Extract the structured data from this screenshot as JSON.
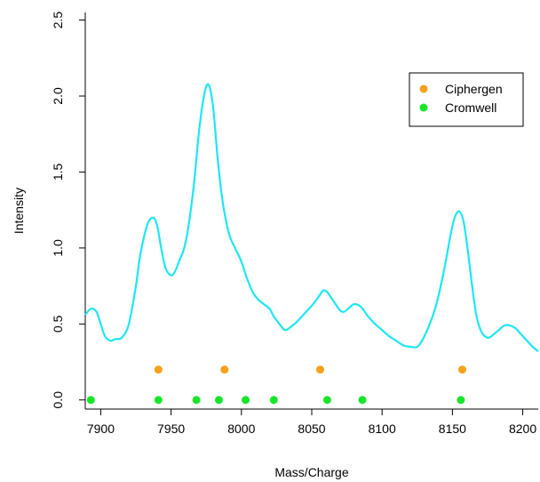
{
  "chart_data": {
    "type": "line",
    "xlabel": "Mass/Charge",
    "ylabel": "Intensity",
    "xlim": [
      7889,
      8211
    ],
    "ylim": [
      -0.06,
      2.55
    ],
    "x_ticks": [
      "7900",
      "7950",
      "8000",
      "8050",
      "8100",
      "8150",
      "8200"
    ],
    "y_ticks": [
      "0.0",
      "0.5",
      "1.0",
      "1.5",
      "2.0",
      "2.5"
    ],
    "grid": false,
    "legend_position": "top-right",
    "colors": {
      "spectrum": "#1ee6f2",
      "ciphergen": "#f7a01a",
      "cromwell": "#16e62a"
    },
    "spectrum": {
      "x": [
        7889,
        7893,
        7897,
        7900,
        7903,
        7907,
        7910,
        7915,
        7920,
        7925,
        7928,
        7933,
        7937,
        7940,
        7943,
        7946,
        7950,
        7953,
        7956,
        7959,
        7962,
        7966,
        7970,
        7974,
        7977,
        7980,
        7983,
        7986,
        7989,
        7992,
        7996,
        8000,
        8004,
        8008,
        8012,
        8016,
        8020,
        8023,
        8027,
        8031,
        8035,
        8040,
        8045,
        8050,
        8055,
        8058,
        8061,
        8064,
        8067,
        8070,
        8073,
        8077,
        8080,
        8084,
        8087,
        8090,
        8095,
        8100,
        8105,
        8110,
        8115,
        8120,
        8125,
        8129,
        8133,
        8137,
        8141,
        8145,
        8149,
        8152,
        8155,
        8158,
        8161,
        8164,
        8167,
        8170,
        8173,
        8176,
        8179,
        8183,
        8187,
        8191,
        8195,
        8199,
        8203,
        8207,
        8211
      ],
      "y": [
        0.56,
        0.6,
        0.58,
        0.5,
        0.42,
        0.39,
        0.4,
        0.41,
        0.5,
        0.75,
        0.95,
        1.15,
        1.2,
        1.15,
        1.0,
        0.87,
        0.82,
        0.85,
        0.92,
        0.99,
        1.12,
        1.4,
        1.78,
        2.03,
        2.07,
        1.92,
        1.6,
        1.35,
        1.18,
        1.07,
        0.99,
        0.91,
        0.8,
        0.71,
        0.66,
        0.63,
        0.6,
        0.55,
        0.5,
        0.46,
        0.48,
        0.52,
        0.57,
        0.62,
        0.68,
        0.72,
        0.71,
        0.67,
        0.63,
        0.59,
        0.58,
        0.61,
        0.63,
        0.62,
        0.59,
        0.55,
        0.5,
        0.46,
        0.42,
        0.39,
        0.36,
        0.35,
        0.35,
        0.4,
        0.48,
        0.58,
        0.72,
        0.9,
        1.1,
        1.21,
        1.24,
        1.17,
        0.98,
        0.75,
        0.56,
        0.46,
        0.42,
        0.41,
        0.43,
        0.46,
        0.49,
        0.49,
        0.47,
        0.43,
        0.39,
        0.35,
        0.32
      ]
    },
    "series": [
      {
        "name": "Ciphergen",
        "x": [
          7941,
          7988,
          8056,
          8157
        ],
        "y": [
          0.2,
          0.2,
          0.2,
          0.2
        ]
      },
      {
        "name": "Cromwell",
        "x": [
          7893,
          7941,
          7968,
          7984,
          8003,
          8023,
          8061,
          8086,
          8156
        ],
        "y": [
          0.0,
          0.0,
          0.0,
          0.0,
          0.0,
          0.0,
          0.0,
          0.0,
          0.0
        ]
      }
    ]
  }
}
